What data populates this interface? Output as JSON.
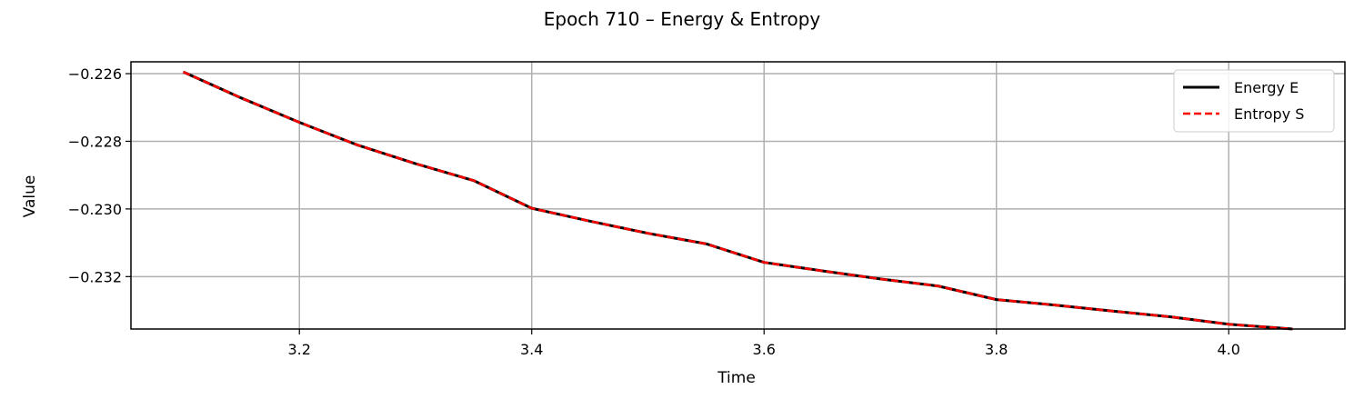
{
  "chart_data": {
    "type": "line",
    "title": "Epoch 710 – Energy & Entropy",
    "xlabel": "Time",
    "ylabel": "Value",
    "xlim": [
      3.055,
      4.1
    ],
    "ylim": [
      -0.23355,
      -0.22565
    ],
    "xticks": [
      3.2,
      3.4,
      3.6,
      3.8,
      4.0
    ],
    "xtick_labels": [
      "3.2",
      "3.4",
      "3.6",
      "3.8",
      "4.0"
    ],
    "yticks": [
      -0.226,
      -0.228,
      -0.23,
      -0.232
    ],
    "ytick_labels": [
      "−0.226",
      "−0.228",
      "−0.230",
      "−0.232"
    ],
    "grid": true,
    "legend_position": "top-right",
    "series": [
      {
        "name": "Energy E",
        "color": "#000000",
        "style": "solid",
        "x": [
          3.1,
          3.15,
          3.2,
          3.25,
          3.3,
          3.35,
          3.4,
          3.45,
          3.5,
          3.55,
          3.6,
          3.65,
          3.7,
          3.75,
          3.8,
          3.85,
          3.9,
          3.95,
          4.0,
          4.055
        ],
        "y": [
          -0.22595,
          -0.22672,
          -0.22744,
          -0.22811,
          -0.22866,
          -0.22916,
          -0.22998,
          -0.23036,
          -0.23072,
          -0.23103,
          -0.23158,
          -0.23183,
          -0.23207,
          -0.23228,
          -0.23268,
          -0.23284,
          -0.23302,
          -0.23319,
          -0.23341,
          -0.23355
        ]
      },
      {
        "name": "Entropy S",
        "color": "#ff0000",
        "style": "dashed",
        "x": [
          3.1,
          3.15,
          3.2,
          3.25,
          3.3,
          3.35,
          3.4,
          3.45,
          3.5,
          3.55,
          3.6,
          3.65,
          3.7,
          3.75,
          3.8,
          3.85,
          3.9,
          3.95,
          4.0,
          4.055
        ],
        "y": [
          -0.22595,
          -0.22672,
          -0.22744,
          -0.22811,
          -0.22866,
          -0.22916,
          -0.22998,
          -0.23036,
          -0.23072,
          -0.23103,
          -0.23158,
          -0.23183,
          -0.23207,
          -0.23228,
          -0.23268,
          -0.23284,
          -0.23302,
          -0.23319,
          -0.23341,
          -0.23355
        ]
      }
    ]
  }
}
